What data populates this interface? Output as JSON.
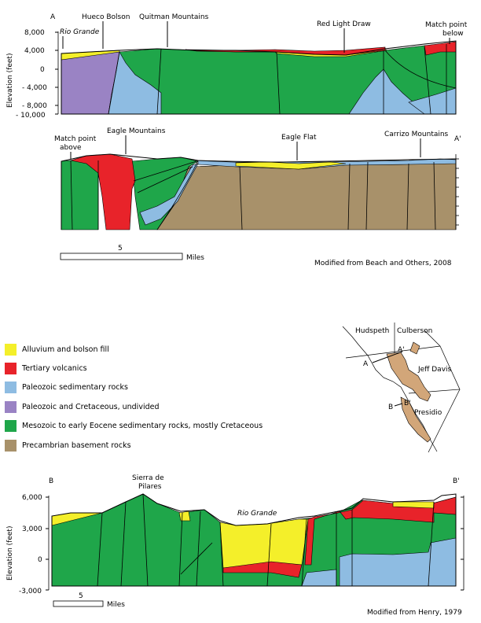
{
  "colors": {
    "alluvium": "#f4ef2a",
    "volcanics": "#e8232a",
    "paleozoic_sed": "#8ebce2",
    "paleozoic_cret": "#9a83c4",
    "mesozoic": "#1fa64a",
    "precambrian": "#a8916a",
    "locator_fill": "#d2a679"
  },
  "sectionA": {
    "label_start": "A",
    "label_end": "A'",
    "y_ticks": [
      "8,000",
      "4,000",
      "0",
      "- 4,000",
      "- 8,000",
      "- 10,000"
    ],
    "y_axis_label": "Elevation (feet)",
    "labels": {
      "rio_grande": "Rio Grande",
      "hueco": "Hueco Bolson",
      "quitman": "Quitman Mountains",
      "red_light": "Red Light Draw",
      "match_below_1": "Match point",
      "match_below_2": "below",
      "match_above_1": "Match point",
      "match_above_2": "above",
      "eagle_mtns": "Eagle Mountains",
      "eagle_flat": "Eagle Flat",
      "carrizo": "Carrizo Mountains"
    },
    "scale_number": "5",
    "scale_unit": "Miles",
    "credit": "Modified from Beach and Others, 2008"
  },
  "legend": [
    {
      "key": "alluvium",
      "label": "Alluvium and bolson fill"
    },
    {
      "key": "volcanics",
      "label": "Tertiary volcanics"
    },
    {
      "key": "paleozoic_sed",
      "label": "Paleozoic sedimentary rocks"
    },
    {
      "key": "paleozoic_cret",
      "label": "Paleozoic and Cretaceous, undivided"
    },
    {
      "key": "mesozoic",
      "label": "Mesozoic to early Eocene sedimentary rocks, mostly Cretaceous"
    },
    {
      "key": "precambrian",
      "label": "Precambrian basement rocks"
    }
  ],
  "locator": {
    "counties": [
      "Hudspeth",
      "Culberson",
      "Jeff Davis",
      "Presidio"
    ],
    "points": [
      "A",
      "A'",
      "B",
      "B'"
    ]
  },
  "sectionB": {
    "label_start": "B",
    "label_end": "B'",
    "y_ticks": [
      "6,000",
      "3,000",
      "0",
      "-3,000"
    ],
    "y_axis_label": "Elevation (feet)",
    "labels": {
      "sierra_1": "Sierra de",
      "sierra_2": "Pilares",
      "rio_grande": "Rio Grande"
    },
    "scale_number": "5",
    "scale_unit": "Miles",
    "credit": "Modified from Henry, 1979"
  }
}
